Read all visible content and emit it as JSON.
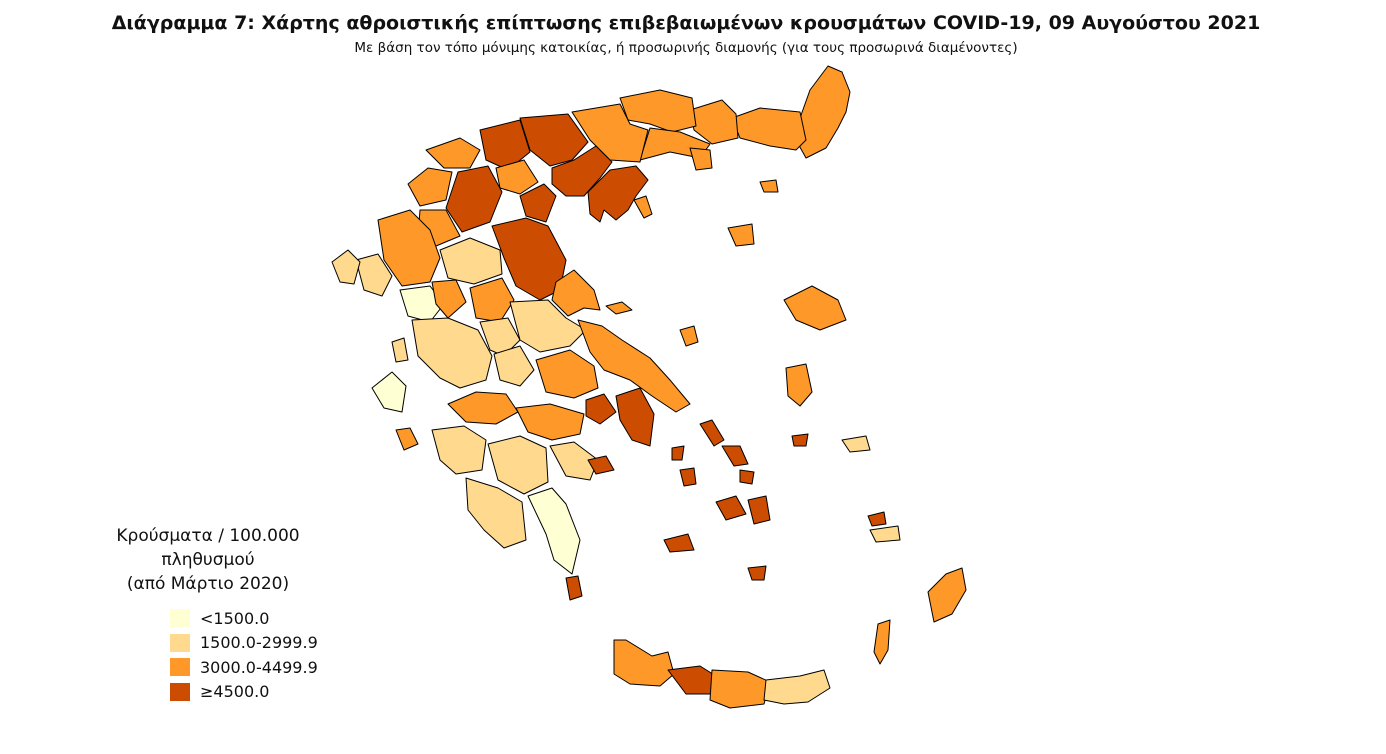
{
  "title": "Διάγραμμα 7: Χάρτης αθροιστικής επίπτωσης επιβεβαιωμένων κρουσμάτων COVID-19, 09 Αυγούστου 2021",
  "subtitle": "Με βάση τον τόπο μόνιμης κατοικίας, ή προσωρινής διαμονής (για τους προσωρινά διαμένοντες)",
  "legend": {
    "title_line1": "Κρούσματα / 100.000 πληθυσμού",
    "title_line2": "(από Μάρτιο 2020)",
    "classes": [
      {
        "label": "<1500.0",
        "color": "#ffffd4"
      },
      {
        "label": "1500.0-2999.9",
        "color": "#fed98e"
      },
      {
        "label": "3000.0-4499.9",
        "color": "#fe9929"
      },
      {
        "label": "≥4500.0",
        "color": "#cc4c02"
      }
    ]
  },
  "map": {
    "outline_color": "#000000",
    "background": "#ffffff"
  }
}
